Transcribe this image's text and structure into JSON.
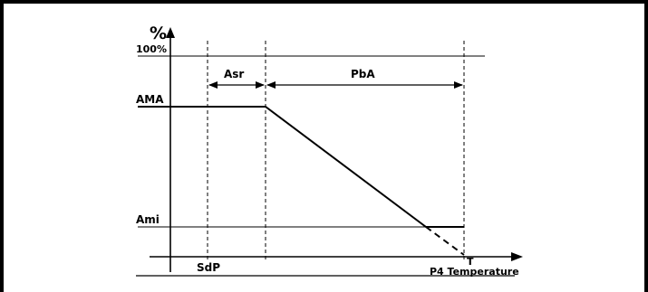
{
  "diagram": {
    "y_axis_unit": "%",
    "levels": {
      "max_percent": "100%",
      "upper": "AMA",
      "lower": "Ami"
    },
    "x_markers": {
      "setpoint": "SdP",
      "end": "T",
      "axis_label": "P4 Temperature"
    },
    "bands": {
      "first": "Asr",
      "second": "PbA"
    }
  }
}
